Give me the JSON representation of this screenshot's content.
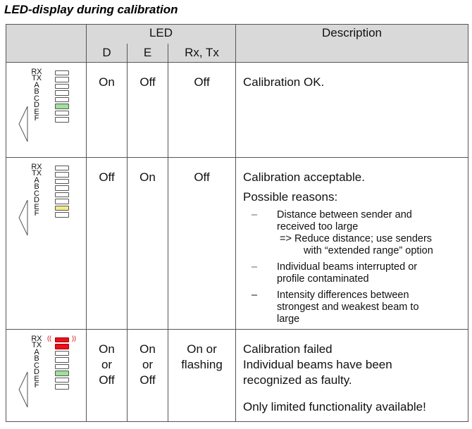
{
  "title": "LED-display during calibration",
  "header": {
    "led": "LED",
    "description": "Description",
    "col_d": "D",
    "col_e": "E",
    "col_rxtx": "Rx, Tx"
  },
  "led_labels": [
    "RX",
    "TX",
    "A",
    "B",
    "C",
    "D",
    "E",
    "F"
  ],
  "rows": [
    {
      "d": "On",
      "e": "Off",
      "rxtx": "Off",
      "desc": "Calibration OK.",
      "leds": [
        "off",
        "off",
        "off",
        "off",
        "off",
        "green",
        "off",
        "off"
      ]
    },
    {
      "d": "Off",
      "e": "On",
      "rxtx": "Off",
      "desc": "Calibration acceptable.",
      "possible": "Possible reasons:",
      "reasons": [
        {
          "dash": "–",
          "line1": "Distance between sender and",
          "line2": "received too large",
          "line3": "=> Reduce distance; use senders",
          "line4": "with “extended range” option"
        },
        {
          "dash": "–",
          "line1": "Individual beams interrupted or",
          "line2": "profile contaminated"
        },
        {
          "dash": "–",
          "line1": "Intensity differences between",
          "line2": "strongest and weakest beam to",
          "line3": "large"
        }
      ],
      "leds": [
        "off",
        "off",
        "off",
        "off",
        "off",
        "off",
        "yellow",
        "off"
      ]
    },
    {
      "d1": "On",
      "d2": "or",
      "d3": "Off",
      "e1": "On",
      "e2": "or",
      "e3": "Off",
      "rxtx1": "On or",
      "rxtx2": "flashing",
      "desc1": "Calibration failed",
      "desc2": "Individual beams have been",
      "desc3": "recognized as faulty.",
      "desc4": "Only limited functionality available!",
      "leds": [
        "red",
        "red",
        "off",
        "off",
        "off",
        "green",
        "off",
        "off"
      ]
    }
  ]
}
